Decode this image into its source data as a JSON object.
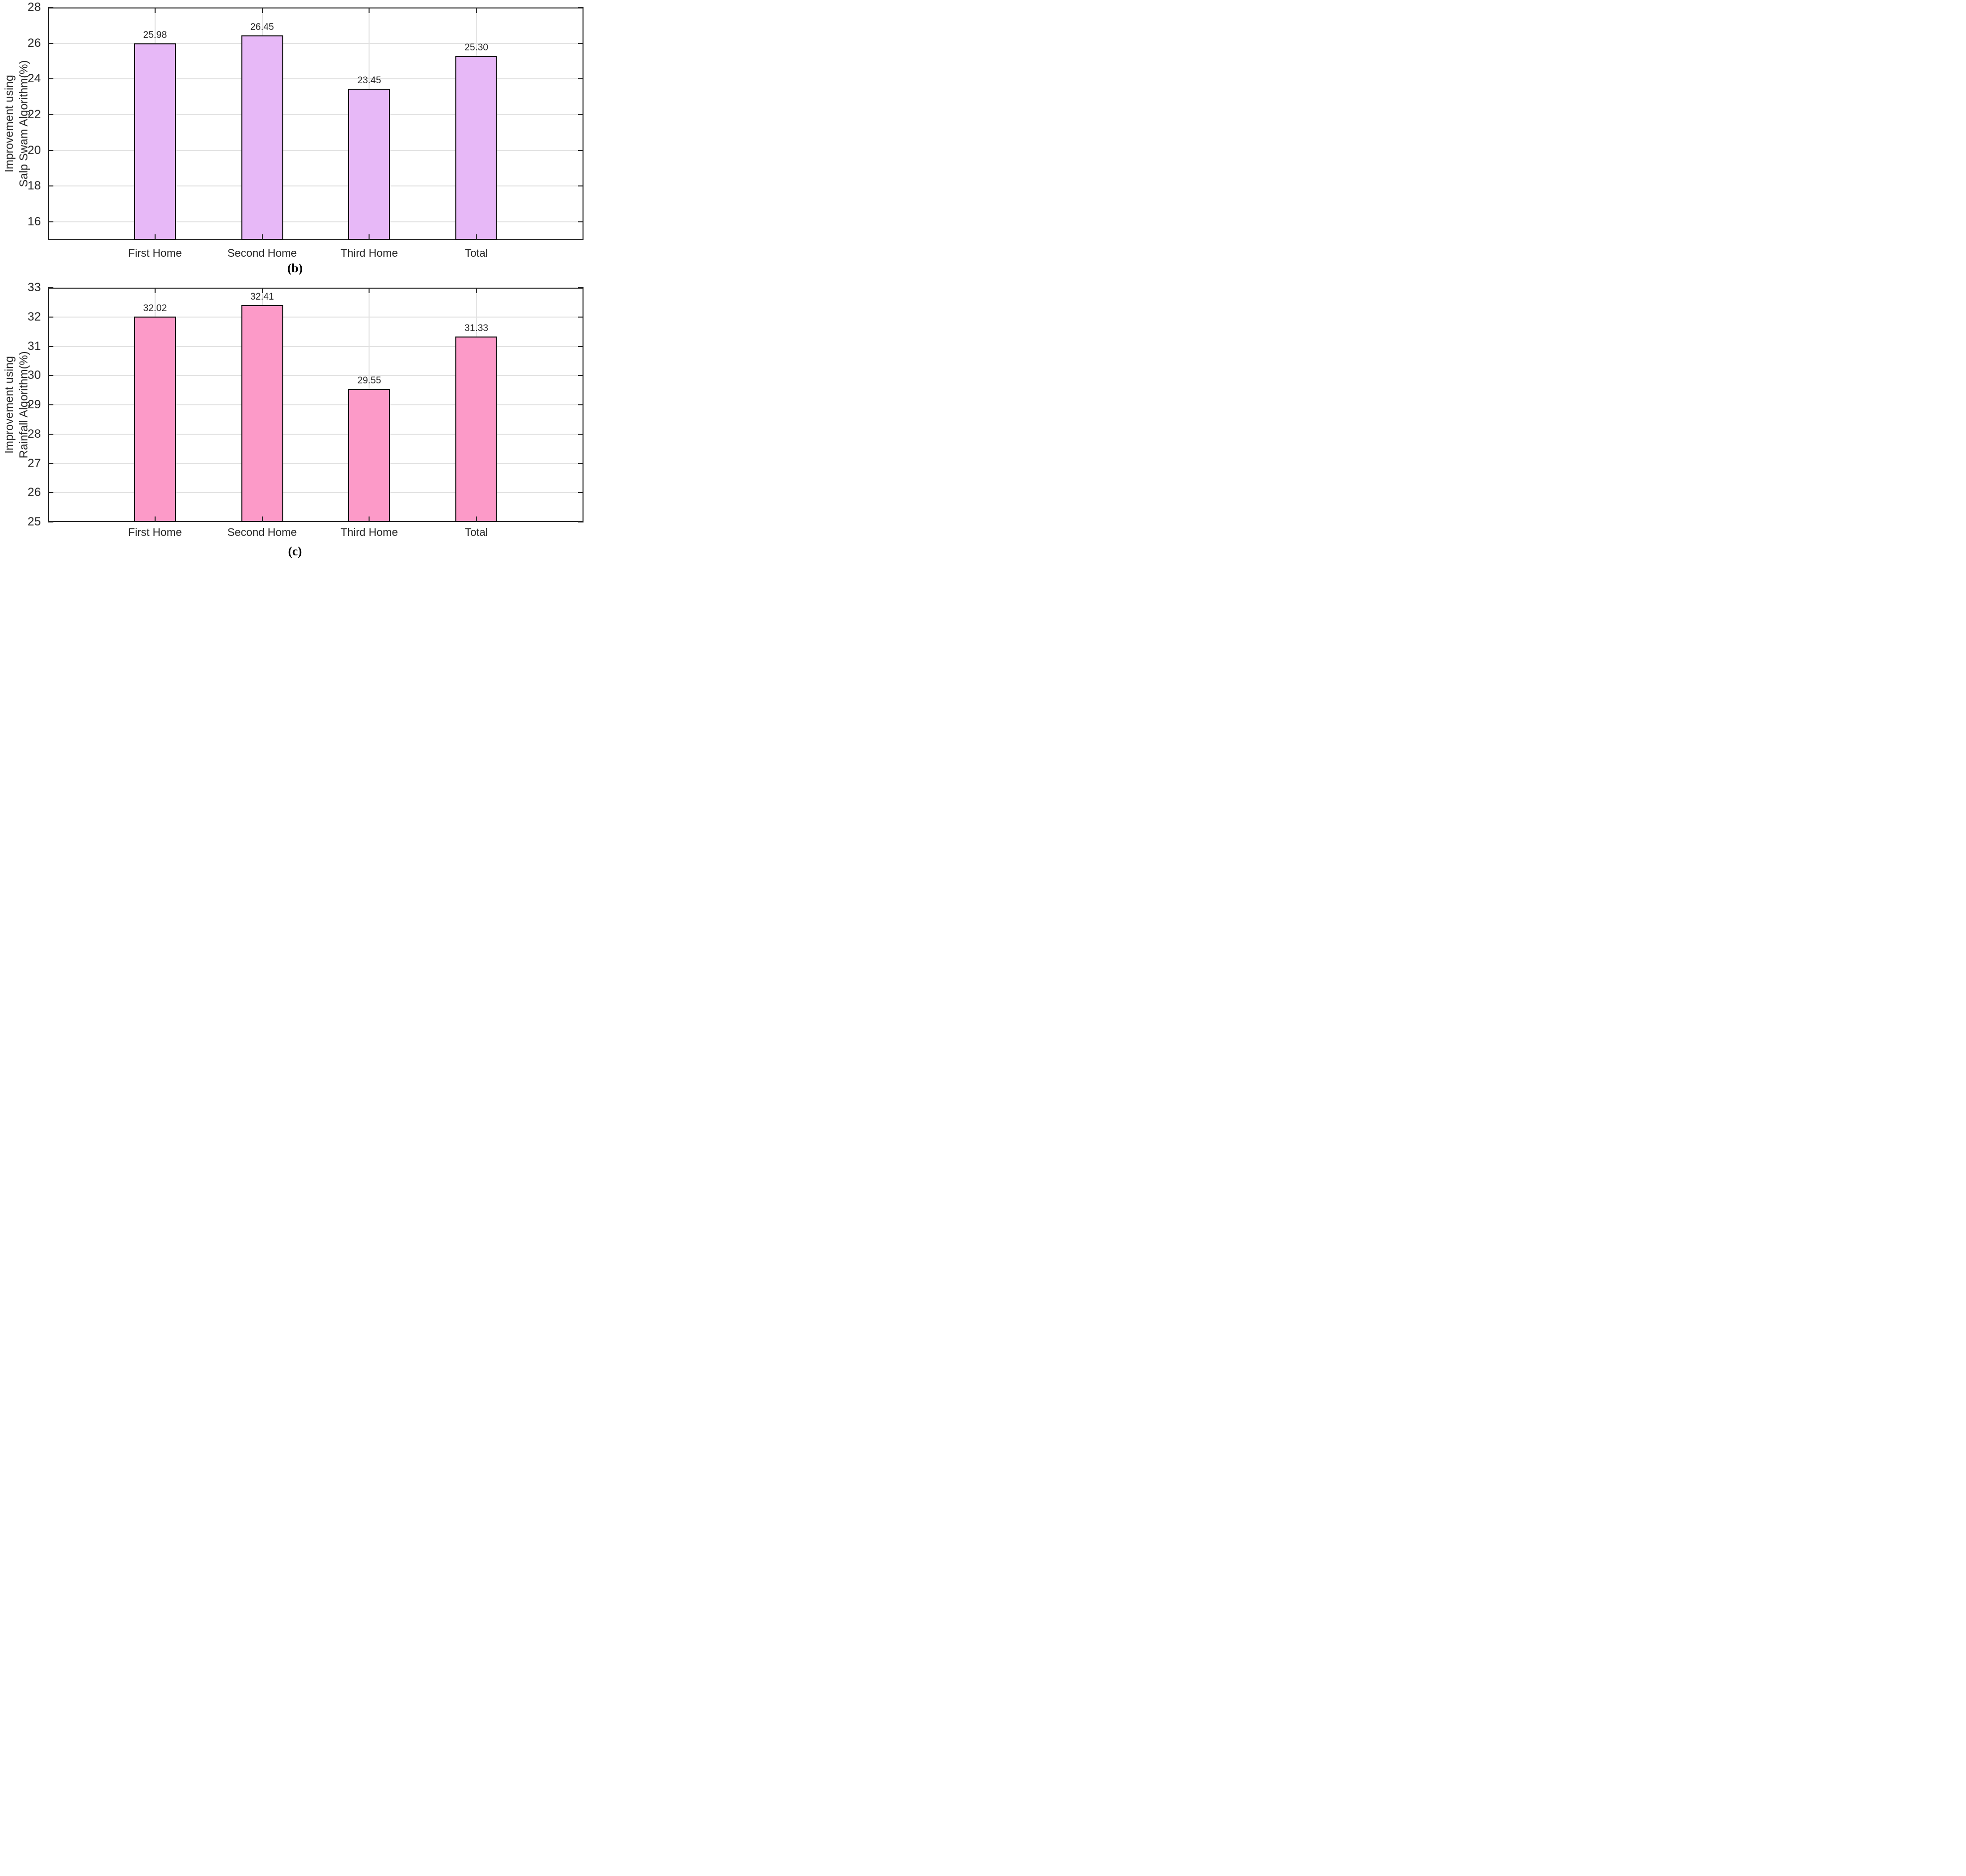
{
  "figure": {
    "background": "#ffffff"
  },
  "colors": {
    "axis_frame": "#262626",
    "grid_line": "#e2e2e2",
    "tick_text": "#262626",
    "bar_edge": "#111111",
    "salp_bar_fill": "#e7b8f7",
    "rainfall_bar_fill": "#fc9ac8"
  },
  "chart_data": [
    {
      "id": "b",
      "type": "bar",
      "caption": "(b)",
      "ylabel_lines": [
        "Improvement using",
        "Salp Swam Algorithm(%)"
      ],
      "categories": [
        "First Home",
        "Second Home",
        "Third Home",
        "Total"
      ],
      "values": [
        25.98,
        26.45,
        23.45,
        25.3
      ],
      "bar_value_labels": [
        "25.98",
        "26.45",
        "23.45",
        "25.30"
      ],
      "ylim": [
        15,
        28
      ],
      "yticks": [
        16,
        18,
        20,
        22,
        24,
        26,
        28
      ],
      "ytick_labels": [
        "16",
        "18",
        "20",
        "22",
        "24",
        "26",
        "28"
      ],
      "bar_fill": "#e7b8f7",
      "grid": "on",
      "legend": "none"
    },
    {
      "id": "c",
      "type": "bar",
      "caption": "(c)",
      "ylabel_lines": [
        "Improvement using",
        "Rainfall Algorithm(%)"
      ],
      "categories": [
        "First Home",
        "Second Home",
        "Third Home",
        "Total"
      ],
      "values": [
        32.02,
        32.41,
        29.55,
        31.33
      ],
      "bar_value_labels": [
        "32.02",
        "32.41",
        "29.55",
        "31.33"
      ],
      "ylim": [
        25,
        33
      ],
      "yticks": [
        25,
        26,
        27,
        28,
        29,
        30,
        31,
        32,
        33
      ],
      "ytick_labels": [
        "25",
        "26",
        "27",
        "28",
        "29",
        "30",
        "31",
        "32",
        "33"
      ],
      "bar_fill": "#fc9ac8",
      "grid": "on",
      "legend": "none"
    }
  ]
}
